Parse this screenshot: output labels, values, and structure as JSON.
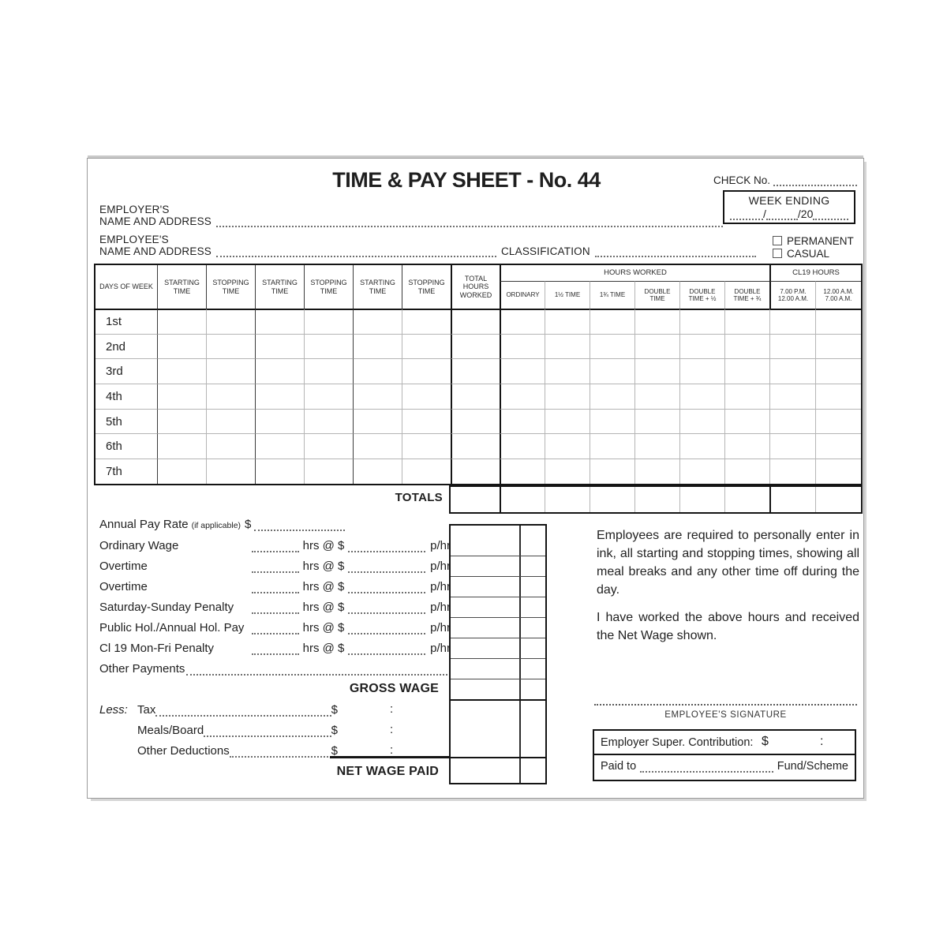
{
  "header": {
    "title": "TIME & PAY SHEET - No. 44",
    "check_no_label": "CHECK No.",
    "week_ending": {
      "label": "WEEK ENDING",
      "slash1": "/",
      "slash2": "/20"
    },
    "employer_line1": "EMPLOYER'S",
    "employer_line2": "NAME AND ADDRESS",
    "employee_line1": "EMPLOYEE'S",
    "employee_line2": "NAME AND ADDRESS",
    "classification_label": "CLASSIFICATION",
    "employment_types": [
      "PERMANENT",
      "CASUAL"
    ]
  },
  "table": {
    "days_header": "DAYS OF WEEK",
    "time_headers": [
      "STARTING TIME",
      "STOPPING TIME",
      "STARTING TIME",
      "STOPPING TIME",
      "STARTING TIME",
      "STOPPING TIME"
    ],
    "total_hours_header": "TOTAL HOURS WORKED",
    "group_headers": {
      "hours_worked": "HOURS WORKED",
      "cl19": "CL19 HOURS"
    },
    "sub_headers": [
      "ORDINARY",
      "1½ TIME",
      "1¾ TIME",
      "DOUBLE TIME",
      "DOUBLE TIME + ½",
      "DOUBLE TIME + ¾",
      "7.00 P.M. 12.00 A.M.",
      "12.00 A.M. 7.00 A.M."
    ],
    "day_rows": [
      "1st",
      "2nd",
      "3rd",
      "4th",
      "5th",
      "6th",
      "7th"
    ],
    "totals_label": "TOTALS"
  },
  "wages": {
    "annual_label": "Annual Pay Rate",
    "annual_note": "(if applicable)",
    "currency": "$",
    "hrs_at": "hrs @ $",
    "per_hr": "p/hr",
    "items": [
      "Ordinary Wage",
      "Overtime",
      "Overtime",
      "Saturday-Sunday Penalty",
      "Public Hol./Annual Hol. Pay",
      "Cl 19 Mon-Fri Penalty"
    ],
    "other_payments_label": "Other Payments",
    "gross_label": "GROSS WAGE",
    "less_label": "Less:",
    "deductions": [
      "Tax",
      "Meals/Board",
      "Other Deductions"
    ],
    "cents_sep": ":",
    "net_label": "NET WAGE PAID"
  },
  "notices": {
    "para1": "Employees are required to personally enter in ink, all starting and stopping times, showing all meal breaks and any other time off during the day.",
    "para2": "I have worked the above hours and received the Net Wage shown."
  },
  "signature": {
    "label": "EMPLOYEE'S SIGNATURE"
  },
  "super_box": {
    "contribution_label": "Employer Super. Contribution:",
    "currency": "$",
    "cents_sep": ":",
    "paid_to_label": "Paid to",
    "fund_label": "Fund/Scheme"
  }
}
